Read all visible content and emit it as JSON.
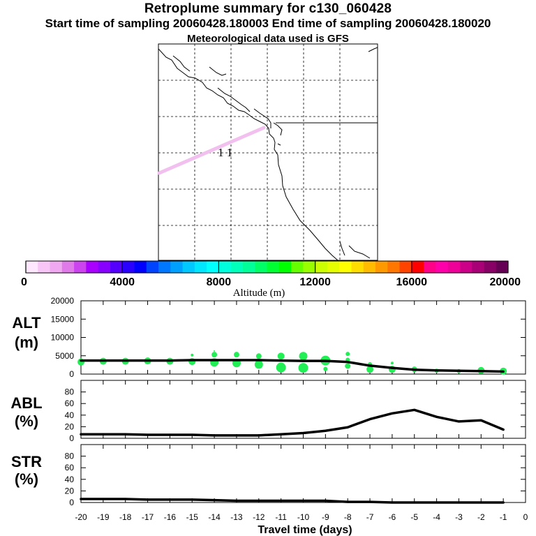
{
  "header": {
    "title": "Retroplume summary for c130_060428",
    "sampling": "Start time of sampling 20060428.180003     End time of sampling 20060428.180020",
    "met": "Meteorological data used is GFS"
  },
  "map": {
    "day_marker_label": "1 1",
    "trajectory_color": "#f2c0ee",
    "coast_color": "#000000",
    "grid_style": "dashed"
  },
  "colorbar": {
    "min": 0,
    "max": 20000,
    "tick_labels": [
      "0",
      "4000",
      "8000",
      "12000",
      "16000",
      "20000"
    ],
    "title": "Altitude (m)",
    "colors": [
      "#ffe8ff",
      "#f7c6f7",
      "#f0a8f0",
      "#e07ae8",
      "#cc44ee",
      "#aa00ff",
      "#8800ff",
      "#5500ff",
      "#2a00ff",
      "#0000ff",
      "#0044ff",
      "#0077ff",
      "#00a0ff",
      "#00c8ff",
      "#00e6ff",
      "#00ffff",
      "#00ffdd",
      "#00ffbb",
      "#00ff99",
      "#00ff66",
      "#00ff33",
      "#00ff00",
      "#66ff00",
      "#99ff00",
      "#ccff00",
      "#e6ff00",
      "#ffff00",
      "#ffdd00",
      "#ffbb00",
      "#ff9900",
      "#ff7700",
      "#ff4400",
      "#ff0000",
      "#ff0088",
      "#ff00aa",
      "#ee0099",
      "#cc0088",
      "#aa0077",
      "#880066",
      "#660055"
    ]
  },
  "chart_data": [
    {
      "type": "line",
      "name": "ALT",
      "label": "ALT",
      "unit": "(m)",
      "ylim": [
        0,
        20000
      ],
      "yticks": [
        "20000",
        "15000",
        "10000",
        "5000",
        "0"
      ],
      "x": [
        -20,
        -19,
        -18,
        -17,
        -16,
        -15,
        -14,
        -13,
        -12,
        -11,
        -10,
        -9,
        -8,
        -7,
        -6,
        -5,
        -4,
        -3,
        -2,
        -1
      ],
      "values": [
        3700,
        3700,
        3700,
        3700,
        3700,
        3800,
        3800,
        3800,
        3800,
        3700,
        3600,
        3600,
        3300,
        2300,
        1700,
        1200,
        1000,
        900,
        800,
        700
      ],
      "scatter_color": "#22ee55",
      "scatter": [
        [
          -20,
          3300,
          5
        ],
        [
          -19,
          3500,
          5
        ],
        [
          -18,
          3500,
          5
        ],
        [
          -17,
          3600,
          5
        ],
        [
          -16,
          3500,
          5
        ],
        [
          -15,
          3400,
          5
        ],
        [
          -15,
          5200,
          2
        ],
        [
          -14,
          3200,
          6
        ],
        [
          -14,
          5300,
          4
        ],
        [
          -14,
          6300,
          1
        ],
        [
          -13,
          3000,
          6
        ],
        [
          -13,
          5300,
          4
        ],
        [
          -12,
          2600,
          6
        ],
        [
          -12,
          4900,
          4
        ],
        [
          -11,
          1800,
          7
        ],
        [
          -11,
          4900,
          5
        ],
        [
          -10,
          1700,
          7
        ],
        [
          -10,
          4900,
          6
        ],
        [
          -9,
          1400,
          3
        ],
        [
          -9,
          3700,
          7
        ],
        [
          -8,
          2200,
          4
        ],
        [
          -8,
          3900,
          3
        ],
        [
          -8,
          5500,
          3
        ],
        [
          -7,
          1300,
          5
        ],
        [
          -7,
          2700,
          3
        ],
        [
          -6,
          1300,
          5
        ],
        [
          -6,
          3000,
          2
        ],
        [
          -5,
          1300,
          4
        ],
        [
          -4,
          900,
          3
        ],
        [
          -3,
          800,
          3
        ],
        [
          -2,
          1000,
          5
        ],
        [
          -1,
          800,
          5
        ]
      ]
    },
    {
      "type": "line",
      "name": "ABL",
      "label": "ABL",
      "unit": "(%)",
      "ylim": [
        0,
        100
      ],
      "yticks": [
        "80",
        "60",
        "40",
        "20",
        "0"
      ],
      "x": [
        -20,
        -19,
        -18,
        -17,
        -16,
        -15,
        -14,
        -13,
        -12,
        -11,
        -10,
        -9,
        -8,
        -7,
        -6,
        -5,
        -4,
        -3,
        -2,
        -1
      ],
      "values": [
        7,
        7,
        7,
        6,
        6,
        6,
        5,
        5,
        5,
        7,
        9,
        13,
        19,
        33,
        43,
        49,
        37,
        29,
        31,
        15
      ]
    },
    {
      "type": "line",
      "name": "STR",
      "label": "STR",
      "unit": "(%)",
      "ylim": [
        0,
        100
      ],
      "yticks": [
        "80",
        "60",
        "40",
        "20",
        "0"
      ],
      "x": [
        -20,
        -19,
        -18,
        -17,
        -16,
        -15,
        -14,
        -13,
        -12,
        -11,
        -10,
        -9,
        -8,
        -7,
        -6,
        -5,
        -4,
        -3,
        -2,
        -1
      ],
      "values": [
        6,
        6,
        6,
        5,
        5,
        5,
        4,
        3,
        3,
        3,
        3,
        3,
        1,
        1,
        0,
        0,
        0,
        0,
        0,
        0
      ]
    }
  ],
  "xaxis": {
    "tick_labels": [
      "-20",
      "-19",
      "-18",
      "-17",
      "-16",
      "-15",
      "-14",
      "-13",
      "-12",
      "-11",
      "-10",
      "-9",
      "-8",
      "-7",
      "-6",
      "-5",
      "-4",
      "-3",
      "-2",
      "-1",
      "0"
    ],
    "label": "Travel time (days)"
  }
}
